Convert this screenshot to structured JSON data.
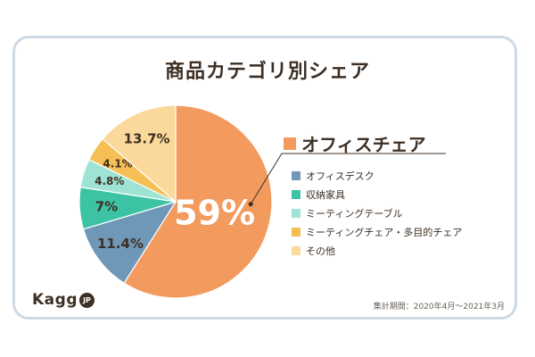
{
  "title": "商品カテゴリ別シェア",
  "highlight_label": "オフィスチェア",
  "period": "集計期間：2020年4月〜2021年3月",
  "logo": {
    "text": "Kagg",
    "badge": "JP"
  },
  "chart_data": {
    "type": "pie",
    "title": "商品カテゴリ別シェア",
    "slices": [
      {
        "label": "オフィスチェア",
        "value": 59,
        "display": "59%",
        "color": "#f39a5e"
      },
      {
        "label": "オフィスデスク",
        "value": 11.4,
        "display": "11.4%",
        "color": "#6f97b8"
      },
      {
        "label": "収納家具",
        "value": 7,
        "display": "7%",
        "color": "#3cc3a4"
      },
      {
        "label": "ミーティングテーブル",
        "value": 4.8,
        "display": "4.8%",
        "color": "#9fe3d5"
      },
      {
        "label": "ミーティングチェア・多目的チェア",
        "value": 4.1,
        "display": "4.1%",
        "color": "#f5bf55"
      },
      {
        "label": "その他",
        "value": 13.7,
        "display": "13.7%",
        "color": "#fad99a"
      }
    ],
    "legend": [
      "オフィスデスク",
      "収納家具",
      "ミーティングテーブル",
      "ミーティングチェア・多目的チェア",
      "その他"
    ],
    "highlight": "オフィスチェア"
  }
}
